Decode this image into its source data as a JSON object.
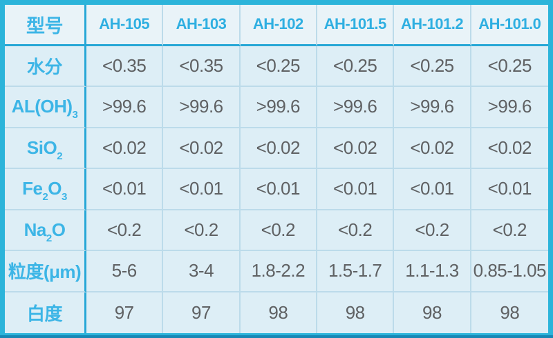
{
  "chart_data": {
    "type": "table",
    "title": "",
    "columns": [
      "型号",
      "AH-105",
      "AH-103",
      "AH-102",
      "AH-101.5",
      "AH-101.2",
      "AH-101.0"
    ],
    "rows": [
      [
        "水分",
        "<0.35",
        "<0.35",
        "<0.25",
        "<0.25",
        "<0.25",
        "<0.25"
      ],
      [
        "AL(OH)₃",
        ">99.6",
        ">99.6",
        ">99.6",
        ">99.6",
        ">99.6",
        ">99.6"
      ],
      [
        "SiO₂",
        "<0.02",
        "<0.02",
        "<0.02",
        "<0.02",
        "<0.02",
        "<0.02"
      ],
      [
        "Fe₂O₃",
        "<0.01",
        "<0.01",
        "<0.01",
        "<0.01",
        "<0.01",
        "<0.01"
      ],
      [
        "Na₂O",
        "<0.2",
        "<0.2",
        "<0.2",
        "<0.2",
        "<0.2",
        "<0.2"
      ],
      [
        "粒度(μm)",
        "5-6",
        "3-4",
        "1.8-2.2",
        "1.5-1.7",
        "1.1-1.3",
        "0.85-1.05"
      ],
      [
        "白度",
        "97",
        "97",
        "98",
        "98",
        "98",
        "98"
      ]
    ],
    "layout": {
      "header_row": true,
      "header_column": true,
      "grid": true
    }
  },
  "row_label_segments": [
    [
      [
        "t",
        "水分"
      ]
    ],
    [
      [
        "t",
        "AL(OH)"
      ],
      [
        "s",
        "3"
      ]
    ],
    [
      [
        "t",
        "SiO"
      ],
      [
        "s",
        "2"
      ]
    ],
    [
      [
        "t",
        "Fe"
      ],
      [
        "s",
        "2"
      ],
      [
        "t",
        "O"
      ],
      [
        "s",
        "3"
      ]
    ],
    [
      [
        "t",
        "Na"
      ],
      [
        "s",
        "2"
      ],
      [
        "t",
        "O"
      ]
    ],
    [
      [
        "t",
        "粒度(μm)"
      ]
    ],
    [
      [
        "t",
        "白度"
      ]
    ]
  ],
  "colors": {
    "outer_border": "#2cb4da",
    "bottom_edge": "#1787b5",
    "thick_divider": "#27a7d6",
    "thin_gridline": "#bcdbea",
    "header_bg": "#e9f3f8",
    "body_bg": "#ddeef6",
    "accent_text": "#3cb5e6",
    "value_text": "#5f6163"
  }
}
